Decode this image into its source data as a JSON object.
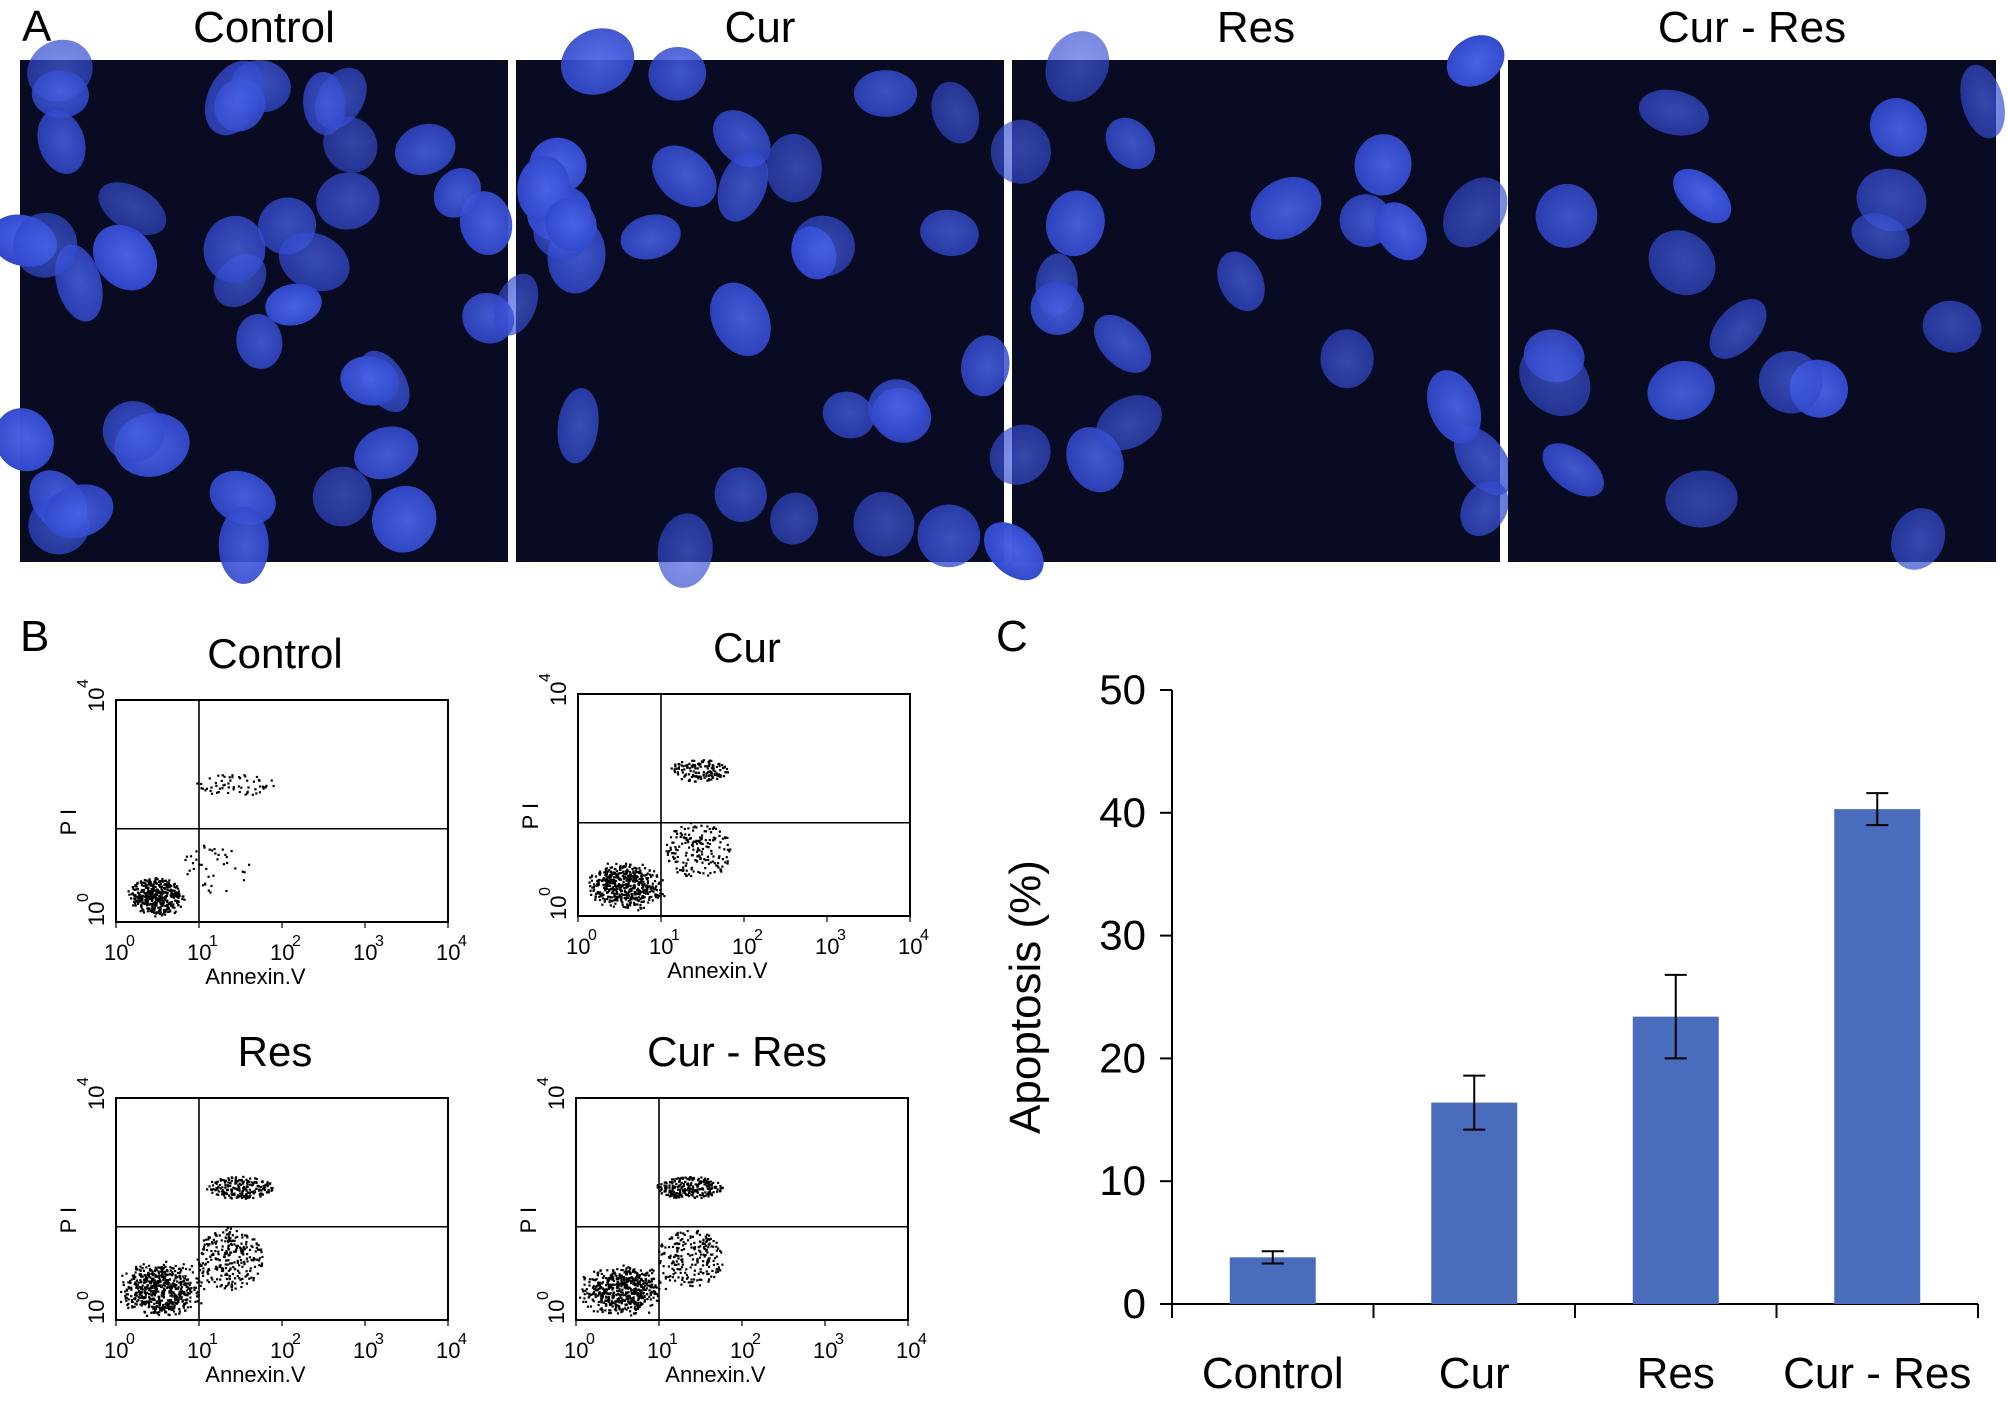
{
  "panels": {
    "A": {
      "letter": "A",
      "images": [
        {
          "title": "Control"
        },
        {
          "title": "Cur"
        },
        {
          "title": "Res"
        },
        {
          "title": "Cur - Res"
        }
      ]
    },
    "B": {
      "letter": "B",
      "plots": [
        {
          "title": "Control",
          "ylabel": "P I",
          "xlabel": "Annexin.V"
        },
        {
          "title": "Cur",
          "ylabel": "P I",
          "xlabel": "Annexin.V"
        },
        {
          "title": "Res",
          "ylabel": "P I",
          "xlabel": "Annexin.V"
        },
        {
          "title": "Cur - Res",
          "ylabel": "P I",
          "xlabel": "Annexin.V"
        }
      ],
      "tick_base": "10",
      "tick_exponents": [
        "0",
        "1",
        "2",
        "3",
        "4"
      ],
      "y_tick_exponents": [
        "0",
        "4"
      ]
    },
    "C": {
      "letter": "C"
    }
  },
  "colors": {
    "bar": "#4a6cbd",
    "nucleus": "#2d44c8",
    "micro_bg": "#090b22"
  },
  "chart_data": {
    "type": "bar",
    "categories": [
      "Control",
      "Cur",
      "Res",
      "Cur - Res"
    ],
    "values": [
      3.8,
      16.4,
      23.4,
      40.3
    ],
    "errors": [
      0.5,
      2.2,
      3.4,
      1.3
    ],
    "ylabel": "Apoptosis (%)",
    "xlabel": "",
    "title": "",
    "ylim": [
      0,
      50
    ],
    "yticks": [
      0,
      10,
      20,
      30,
      40,
      50
    ],
    "grid": false
  }
}
